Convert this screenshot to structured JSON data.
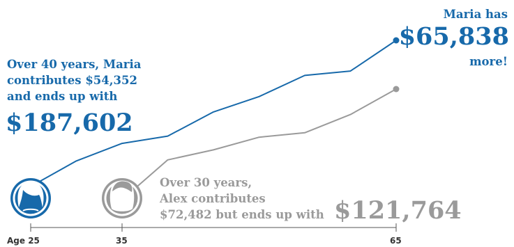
{
  "colors": {
    "maria": "#1769aa",
    "alex": "#9a9a9a",
    "axis": "#555555",
    "text_dark": "#333333"
  },
  "annotations": {
    "maria_lines": [
      "Over 40 years, Maria",
      "contributes $54,352",
      "and ends up with"
    ],
    "maria_total": "$187,602",
    "difference_top": "Maria has",
    "difference_amount": "$65,838",
    "difference_bottom": "more!",
    "alex_lines": [
      "Over 30 years,",
      "Alex contributes",
      "$72,482 but ends up with"
    ],
    "alex_total": "$121,764"
  },
  "icons": {
    "maria": "woman-avatar-icon",
    "alex": "man-avatar-icon"
  },
  "chart_data": {
    "type": "line",
    "x_ticks": [
      "Age 25",
      "35",
      "65"
    ],
    "xlim": [
      25,
      65
    ],
    "series": [
      {
        "name": "Maria",
        "x": [
          25,
          30,
          35,
          40,
          45,
          50,
          55,
          60,
          65
        ],
        "values": [
          0,
          1,
          2,
          3,
          4,
          5,
          6,
          7,
          8
        ]
      },
      {
        "name": "Alex",
        "x": [
          35,
          40,
          45,
          50,
          55,
          60,
          65
        ],
        "values": [
          0,
          1,
          2,
          3,
          4,
          5,
          6
        ]
      }
    ],
    "totals": {
      "Maria": 187602,
      "Alex": 121764,
      "Maria_contributions": 54352,
      "Alex_contributions": 72482
    }
  }
}
